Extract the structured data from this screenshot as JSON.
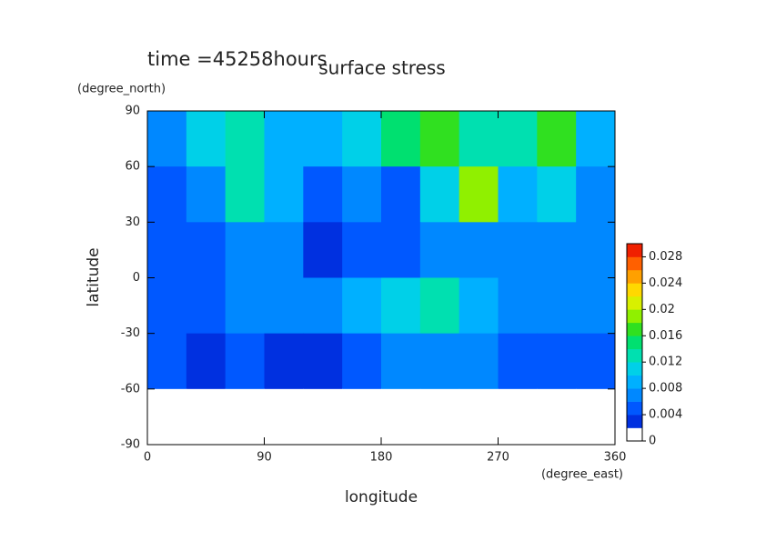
{
  "chart_data": {
    "type": "contour",
    "title": "surface stress",
    "annotation": "time =45258hours",
    "x_label": "longitude",
    "y_label": "latitude",
    "x_unit": "(degree_east)",
    "y_unit": "(degree_north)",
    "xlim": [
      0,
      360
    ],
    "ylim": [
      -90,
      90
    ],
    "xticks": [
      0,
      90,
      180,
      270,
      360
    ],
    "yticks": [
      -90,
      -60,
      -30,
      0,
      30,
      60,
      90
    ],
    "lon_edges": [
      0,
      30,
      60,
      90,
      120,
      150,
      180,
      210,
      240,
      270,
      300,
      330,
      360
    ],
    "lat_edges": [
      90,
      60,
      30,
      0,
      -30,
      -60,
      -90
    ],
    "z": [
      [
        0.006,
        0.01,
        0.012,
        0.008,
        0.008,
        0.01,
        0.014,
        0.016,
        0.012,
        0.012,
        0.016,
        0.008
      ],
      [
        0.004,
        0.006,
        0.012,
        0.008,
        0.004,
        0.006,
        0.004,
        0.01,
        0.018,
        0.008,
        0.01,
        0.006
      ],
      [
        0.004,
        0.004,
        0.006,
        0.006,
        0.002,
        0.004,
        0.004,
        0.006,
        0.006,
        0.006,
        0.006,
        0.006
      ],
      [
        0.004,
        0.004,
        0.006,
        0.006,
        0.006,
        0.008,
        0.01,
        0.012,
        0.008,
        0.006,
        0.006,
        0.006
      ],
      [
        0.004,
        0.002,
        0.004,
        0.002,
        0.002,
        0.004,
        0.006,
        0.006,
        0.006,
        0.004,
        0.004,
        0.004
      ],
      [
        0,
        0,
        0,
        0,
        0,
        0,
        0,
        0,
        0,
        0,
        0,
        0
      ]
    ],
    "clim": [
      0,
      0.03
    ],
    "cticks": [
      0,
      0.004,
      0.008,
      0.012,
      0.016,
      0.02,
      0.024,
      0.028
    ],
    "colors": [
      "#ffffff",
      "#0030e0",
      "#0058ff",
      "#0088ff",
      "#00b0ff",
      "#00d0e8",
      "#00e0b0",
      "#00e070",
      "#30e020",
      "#90f000",
      "#d8f000",
      "#ffd800",
      "#ffa000",
      "#ff6000",
      "#f02000"
    ]
  }
}
